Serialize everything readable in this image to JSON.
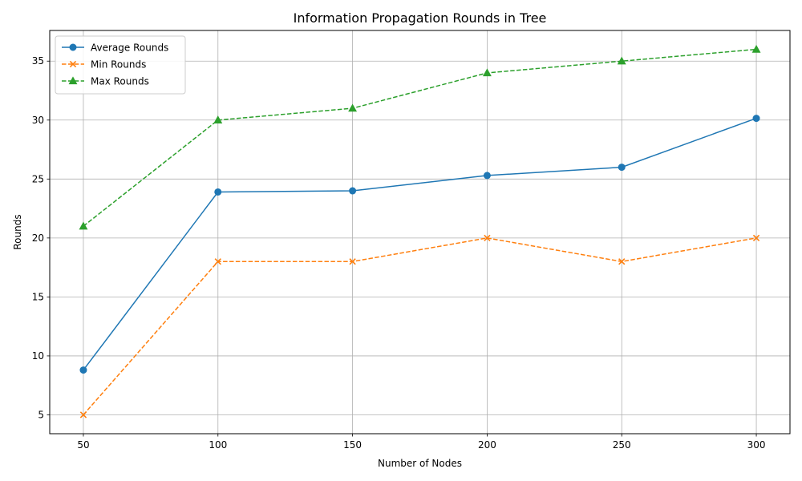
{
  "chart_data": {
    "type": "line",
    "title": "Information Propagation Rounds in Tree",
    "xlabel": "Number of Nodes",
    "ylabel": "Rounds",
    "x": [
      50,
      100,
      150,
      200,
      250,
      300
    ],
    "xlim": [
      37.5,
      312.5
    ],
    "ylim": [
      3.4,
      37.6
    ],
    "xticks": [
      50,
      100,
      150,
      200,
      250,
      300
    ],
    "yticks": [
      5,
      10,
      15,
      20,
      25,
      30,
      35
    ],
    "grid": true,
    "legend_position": "top-left",
    "series": [
      {
        "name": "Average Rounds",
        "values": [
          8.8,
          23.9,
          24.0,
          25.3,
          26.0,
          30.15
        ],
        "color": "#1f77b4",
        "linestyle": "solid",
        "marker": "circle"
      },
      {
        "name": "Min Rounds",
        "values": [
          5,
          18,
          18,
          20,
          18,
          20
        ],
        "color": "#ff7f0e",
        "linestyle": "dashed",
        "marker": "x"
      },
      {
        "name": "Max Rounds",
        "values": [
          21,
          30,
          31,
          34,
          35,
          36
        ],
        "color": "#2ca02c",
        "linestyle": "dashed",
        "marker": "triangle"
      }
    ]
  }
}
